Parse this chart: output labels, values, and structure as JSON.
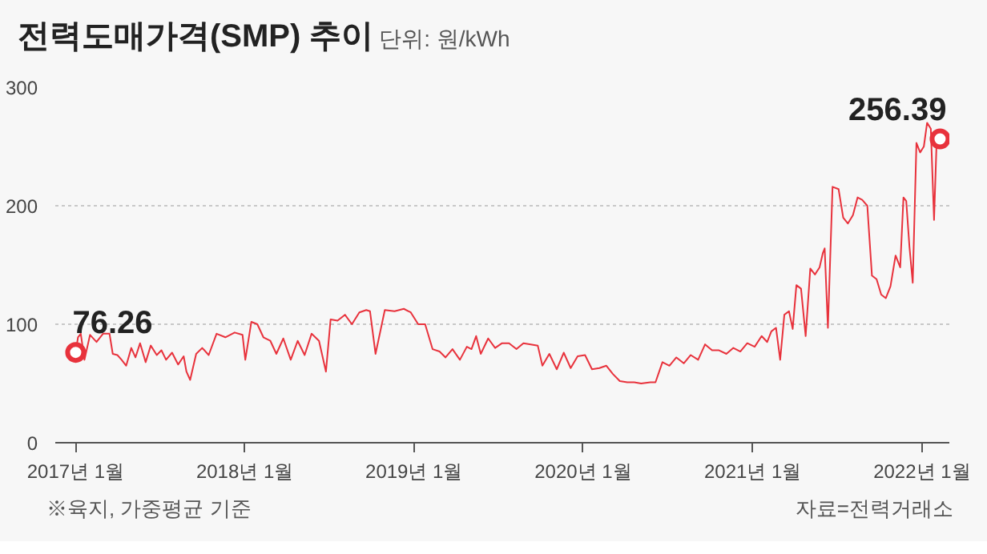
{
  "chart_data": {
    "type": "line",
    "title": "전력도매가격(SMP) 추이",
    "subtitle": "단위: 원/kWh",
    "x": [
      "2017-01-01",
      "2017-01-06",
      "2017-01-12",
      "2017-01-20",
      "2017-02-01",
      "2017-02-15",
      "2017-03-01",
      "2017-03-15",
      "2017-03-22",
      "2017-04-01",
      "2017-04-10",
      "2017-04-20",
      "2017-05-01",
      "2017-05-10",
      "2017-05-20",
      "2017-06-01",
      "2017-06-12",
      "2017-06-25",
      "2017-07-05",
      "2017-07-15",
      "2017-07-28",
      "2017-08-10",
      "2017-08-22",
      "2017-08-28",
      "2017-09-05",
      "2017-09-18",
      "2017-10-01",
      "2017-10-15",
      "2017-11-01",
      "2017-11-20",
      "2017-12-10",
      "2017-12-27",
      "2018-01-02",
      "2018-01-15",
      "2018-01-28",
      "2018-02-10",
      "2018-02-25",
      "2018-03-10",
      "2018-03-25",
      "2018-04-10",
      "2018-04-25",
      "2018-05-10",
      "2018-05-25",
      "2018-06-10",
      "2018-06-25",
      "2018-07-05",
      "2018-07-20",
      "2018-08-05",
      "2018-08-20",
      "2018-09-05",
      "2018-09-20",
      "2018-09-28",
      "2018-10-10",
      "2018-10-30",
      "2018-11-20",
      "2018-12-10",
      "2018-12-25",
      "2019-01-10",
      "2019-01-25",
      "2019-02-10",
      "2019-02-25",
      "2019-03-10",
      "2019-03-25",
      "2019-04-10",
      "2019-04-25",
      "2019-05-05",
      "2019-05-15",
      "2019-05-25",
      "2019-06-10",
      "2019-06-25",
      "2019-07-10",
      "2019-07-25",
      "2019-08-10",
      "2019-08-25",
      "2019-09-10",
      "2019-09-25",
      "2019-10-05",
      "2019-10-20",
      "2019-11-05",
      "2019-11-20",
      "2019-12-05",
      "2019-12-20",
      "2020-01-05",
      "2020-01-20",
      "2020-02-05",
      "2020-02-20",
      "2020-03-05",
      "2020-03-20",
      "2020-04-05",
      "2020-04-20",
      "2020-05-05",
      "2020-05-25",
      "2020-06-05",
      "2020-06-20",
      "2020-07-05",
      "2020-07-20",
      "2020-08-05",
      "2020-08-20",
      "2020-09-05",
      "2020-09-20",
      "2020-10-05",
      "2020-10-20",
      "2020-11-05",
      "2020-11-20",
      "2020-12-05",
      "2020-12-20",
      "2021-01-05",
      "2021-01-20",
      "2021-02-01",
      "2021-02-10",
      "2021-02-20",
      "2021-03-01",
      "2021-03-10",
      "2021-03-20",
      "2021-03-28",
      "2021-04-05",
      "2021-04-15",
      "2021-04-25",
      "2021-05-05",
      "2021-05-15",
      "2021-05-25",
      "2021-06-01",
      "2021-06-05",
      "2021-06-12",
      "2021-06-22",
      "2021-07-05",
      "2021-07-15",
      "2021-07-25",
      "2021-08-05",
      "2021-08-15",
      "2021-08-25",
      "2021-09-05",
      "2021-09-15",
      "2021-09-25",
      "2021-10-05",
      "2021-10-15",
      "2021-10-25",
      "2021-11-05",
      "2021-11-15",
      "2021-11-22",
      "2021-11-28",
      "2021-12-05",
      "2021-12-12",
      "2021-12-20",
      "2021-12-28",
      "2022-01-05",
      "2022-01-12",
      "2022-01-20",
      "2022-01-27",
      "2022-02-02",
      "2022-02-09"
    ],
    "series": [
      {
        "color": "#e8323c",
        "values": [
          76.26,
          89,
          92,
          70,
          91,
          85,
          92,
          92,
          75,
          74,
          70,
          65,
          80,
          72,
          84,
          68,
          82,
          74,
          78,
          70,
          76,
          66,
          73,
          60,
          53,
          75,
          80,
          74,
          92,
          89,
          93,
          91,
          70,
          102,
          100,
          89,
          86,
          75,
          88,
          70,
          86,
          74,
          92,
          86,
          60,
          104,
          103,
          108,
          100,
          110,
          112,
          111,
          75,
          112,
          111,
          113,
          110,
          100,
          100,
          79,
          77,
          72,
          79,
          70,
          81,
          79,
          90,
          75,
          88,
          80,
          84,
          84,
          79,
          84,
          83,
          82,
          65,
          75,
          62,
          76,
          63,
          73,
          74,
          62,
          63,
          65,
          58,
          52,
          51,
          51,
          50,
          51,
          51,
          68,
          65,
          72,
          67,
          74,
          70,
          83,
          78,
          78,
          75,
          80,
          77,
          84,
          81,
          90,
          85,
          94,
          97,
          70,
          108,
          111,
          96,
          133,
          130,
          90,
          147,
          142,
          148,
          160,
          164,
          97,
          216,
          214,
          190,
          185,
          192,
          207,
          205,
          200,
          141,
          138,
          125,
          122,
          132,
          158,
          148,
          207,
          204,
          165,
          135,
          253,
          245,
          250,
          270,
          265,
          188,
          260,
          256.39
        ]
      }
    ],
    "xlim": [
      "2016-11-18",
      "2022-03-01"
    ],
    "xticks": [
      {
        "value": "2017-01-01",
        "label": "2017년 1월"
      },
      {
        "value": "2018-01-01",
        "label": "2018년 1월"
      },
      {
        "value": "2019-01-01",
        "label": "2019년 1월"
      },
      {
        "value": "2020-01-01",
        "label": "2020년 1월"
      },
      {
        "value": "2021-01-01",
        "label": "2021년 1월"
      },
      {
        "value": "2022-01-01",
        "label": "2022년 1월"
      }
    ],
    "ylim": [
      0,
      300
    ],
    "yticks": [
      0,
      100,
      200,
      300
    ],
    "grid": "y",
    "marker": "none",
    "line_style": "solid",
    "annotations": [
      {
        "text": "76.26",
        "x": "2017-01-01",
        "y": 76.26
      },
      {
        "text": "256.39",
        "x": "2022-02-09",
        "y": 256.39
      },
      "※육지, 가중평균 기준",
      "자료=전력거래소"
    ]
  }
}
